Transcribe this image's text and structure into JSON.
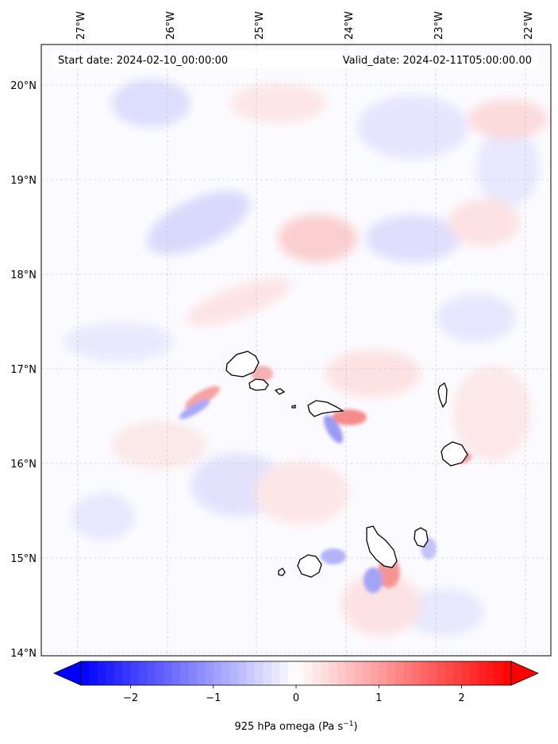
{
  "map": {
    "start_date": "Start date: 2024-02-10_00:00:00",
    "valid_date": "Valid_date: 2024-02-11T05:00:00.00",
    "lon_ticks": [
      "27°W",
      "26°W",
      "25°W",
      "24°W",
      "23°W",
      "22°W"
    ],
    "lat_ticks": [
      "20°N",
      "19°N",
      "18°N",
      "17°N",
      "16°N",
      "15°N",
      "14°N"
    ],
    "land_outline_color": "#000000",
    "field_colormap": "bwr",
    "gridlines": true
  },
  "colorbar": {
    "label_main": "925 hPa omega (Pa s",
    "label_exp": "−1",
    "label_end": ")",
    "ticks": [
      "−2",
      "−1",
      "0",
      "1",
      "2"
    ],
    "tick_values": [
      -2,
      -1,
      0,
      1,
      2
    ],
    "range": [
      -2.6,
      2.6
    ],
    "extend": "both",
    "low_color": "#0000ff",
    "mid_color": "#ffffff",
    "high_color": "#ff0000"
  }
}
